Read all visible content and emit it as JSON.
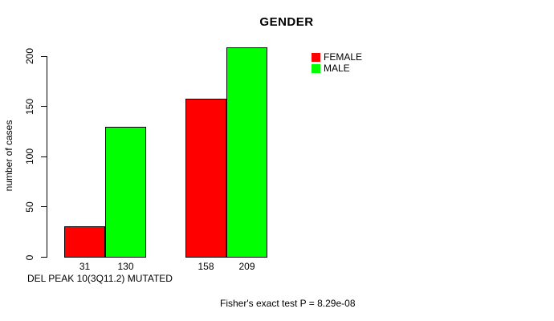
{
  "chart_data": {
    "type": "bar",
    "title": "GENDER",
    "xlabel": "DEL PEAK 10(3Q11.2) MUTATED",
    "ylabel": "number of cases",
    "grouped": true,
    "categories": [
      "group-1",
      "group-2"
    ],
    "series": [
      {
        "name": "FEMALE",
        "color": "#ff0000",
        "values": [
          31,
          158
        ]
      },
      {
        "name": "MALE",
        "color": "#00ff00",
        "values": [
          130,
          209
        ]
      }
    ],
    "bar_labels": [
      "31",
      "130",
      "158",
      "209"
    ],
    "yticks": [
      0,
      50,
      100,
      150,
      200
    ],
    "ylim": [
      0,
      210
    ],
    "grid": false,
    "legend_position": "top-right",
    "annotation": "Fisher's exact test P = 8.29e-08",
    "axis_color": "#000000",
    "background_color": "#ffffff"
  }
}
